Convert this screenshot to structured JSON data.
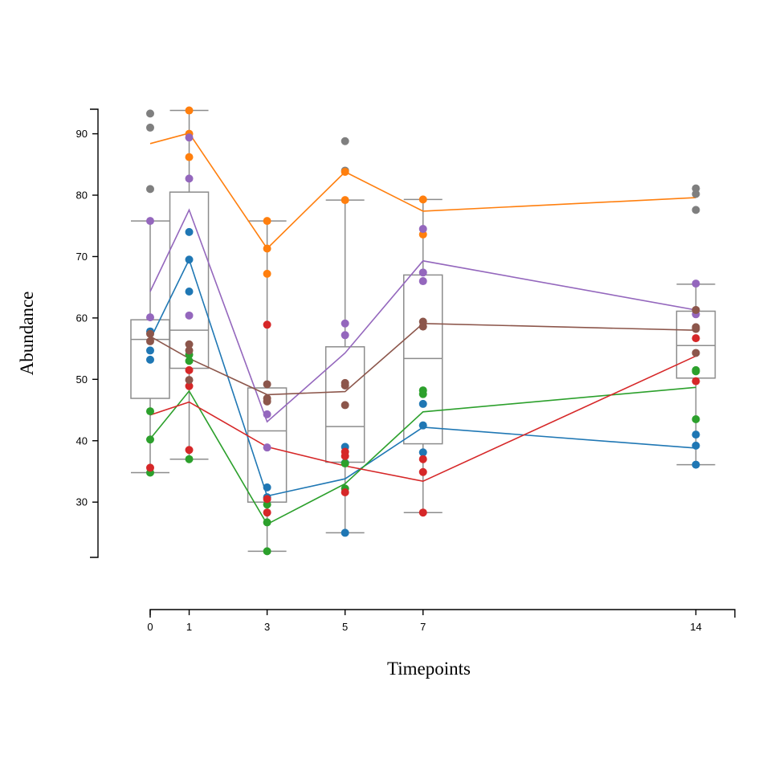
{
  "chart_data": {
    "type": "box",
    "xlabel": "Timepoints",
    "ylabel": "Abundance",
    "x_ticks": [
      0,
      1,
      3,
      5,
      7,
      14
    ],
    "x_range": [
      0,
      15
    ],
    "y_ticks": [
      30,
      40,
      50,
      60,
      70,
      80,
      90
    ],
    "y_range": [
      21,
      94
    ],
    "outlier_color": "#7f7f7f",
    "boxes": [
      {
        "x": 0,
        "whisker_low": 34.8,
        "q1": 46.9,
        "median": 56.5,
        "q3": 59.7,
        "whisker_high": 75.8,
        "outliers": [
          81.0,
          91.0,
          93.3
        ]
      },
      {
        "x": 1,
        "whisker_low": 37.0,
        "q1": 51.8,
        "median": 58.0,
        "q3": 80.5,
        "whisker_high": 93.8,
        "outliers": []
      },
      {
        "x": 3,
        "whisker_low": 22.0,
        "q1": 30.0,
        "median": 41.6,
        "q3": 48.6,
        "whisker_high": 75.8,
        "outliers": []
      },
      {
        "x": 5,
        "whisker_low": 25.0,
        "q1": 36.5,
        "median": 42.3,
        "q3": 55.3,
        "whisker_high": 79.2,
        "outliers": [
          84.0,
          88.8
        ]
      },
      {
        "x": 7,
        "whisker_low": 28.3,
        "q1": 39.5,
        "median": 53.4,
        "q3": 67.0,
        "whisker_high": 79.3,
        "outliers": []
      },
      {
        "x": 14,
        "whisker_low": 36.1,
        "q1": 50.2,
        "median": 55.5,
        "q3": 61.1,
        "whisker_high": 65.5,
        "outliers": [
          77.6,
          80.2,
          81.1
        ]
      }
    ],
    "series": [
      {
        "color": "#1f77b4",
        "line": [
          [
            0,
            56.5
          ],
          [
            1,
            69.5
          ],
          [
            3,
            31.0
          ],
          [
            5,
            33.8
          ],
          [
            7,
            42.2
          ],
          [
            14,
            38.8
          ]
        ],
        "points": [
          [
            0,
            53.2
          ],
          [
            0,
            54.7
          ],
          [
            0,
            57.8
          ],
          [
            1,
            64.3
          ],
          [
            1,
            69.5
          ],
          [
            1,
            74.0
          ],
          [
            3,
            30.8
          ],
          [
            3,
            32.4
          ],
          [
            5,
            25.0
          ],
          [
            5,
            36.4
          ],
          [
            5,
            39.0
          ],
          [
            7,
            38.1
          ],
          [
            7,
            42.5
          ],
          [
            7,
            46.0
          ],
          [
            14,
            36.1
          ],
          [
            14,
            39.2
          ],
          [
            14,
            41.0
          ]
        ]
      },
      {
        "color": "#ff7f0e",
        "line": [
          [
            0,
            88.4
          ],
          [
            1,
            90.1
          ],
          [
            3,
            71.3
          ],
          [
            5,
            83.8
          ],
          [
            7,
            77.4
          ],
          [
            14,
            79.6
          ]
        ],
        "points": [
          [
            1,
            86.2
          ],
          [
            1,
            90.0
          ],
          [
            1,
            93.8
          ],
          [
            3,
            67.2
          ],
          [
            3,
            71.3
          ],
          [
            3,
            75.8
          ],
          [
            5,
            79.2
          ],
          [
            5,
            83.8
          ],
          [
            7,
            73.6
          ],
          [
            7,
            79.3
          ]
        ]
      },
      {
        "color": "#2ca02c",
        "line": [
          [
            0,
            40.3
          ],
          [
            1,
            48.1
          ],
          [
            3,
            26.4
          ],
          [
            5,
            33.0
          ],
          [
            7,
            44.7
          ],
          [
            14,
            48.7
          ]
        ],
        "points": [
          [
            0,
            34.8
          ],
          [
            0,
            40.2
          ],
          [
            0,
            44.8
          ],
          [
            1,
            37.0
          ],
          [
            1,
            53.0
          ],
          [
            1,
            54.0
          ],
          [
            3,
            22.0
          ],
          [
            3,
            26.7
          ],
          [
            3,
            29.6
          ],
          [
            5,
            32.2
          ],
          [
            5,
            36.3
          ],
          [
            7,
            47.6
          ],
          [
            7,
            48.2
          ],
          [
            14,
            43.5
          ],
          [
            14,
            51.3
          ],
          [
            14,
            51.5
          ]
        ]
      },
      {
        "color": "#d62728",
        "line": [
          [
            0,
            44.2
          ],
          [
            1,
            46.3
          ],
          [
            3,
            39.0
          ],
          [
            5,
            35.9
          ],
          [
            7,
            33.4
          ],
          [
            14,
            53.8
          ]
        ],
        "points": [
          [
            0,
            35.6
          ],
          [
            1,
            38.5
          ],
          [
            1,
            48.9
          ],
          [
            1,
            51.5
          ],
          [
            3,
            28.3
          ],
          [
            3,
            30.5
          ],
          [
            3,
            58.9
          ],
          [
            5,
            31.6
          ],
          [
            5,
            37.5
          ],
          [
            5,
            38.2
          ],
          [
            7,
            28.3
          ],
          [
            7,
            34.9
          ],
          [
            7,
            37.0
          ],
          [
            14,
            49.7
          ],
          [
            14,
            56.7
          ]
        ]
      },
      {
        "color": "#9467bd",
        "line": [
          [
            0,
            64.3
          ],
          [
            1,
            77.6
          ],
          [
            3,
            43.1
          ],
          [
            5,
            54.3
          ],
          [
            7,
            69.3
          ],
          [
            14,
            61.3
          ]
        ],
        "points": [
          [
            0,
            60.1
          ],
          [
            0,
            75.8
          ],
          [
            1,
            60.4
          ],
          [
            1,
            82.7
          ],
          [
            1,
            89.4
          ],
          [
            3,
            38.9
          ],
          [
            3,
            44.3
          ],
          [
            5,
            57.2
          ],
          [
            5,
            59.1
          ],
          [
            7,
            66.0
          ],
          [
            7,
            67.4
          ],
          [
            7,
            74.5
          ],
          [
            14,
            60.6
          ],
          [
            14,
            65.6
          ]
        ]
      },
      {
        "color": "#8c564b",
        "line": [
          [
            0,
            57.0
          ],
          [
            1,
            53.4
          ],
          [
            3,
            47.5
          ],
          [
            5,
            48.0
          ],
          [
            7,
            59.1
          ],
          [
            14,
            58.0
          ]
        ],
        "points": [
          [
            0,
            56.2
          ],
          [
            0,
            57.4
          ],
          [
            1,
            49.9
          ],
          [
            1,
            54.7
          ],
          [
            1,
            55.7
          ],
          [
            3,
            46.4
          ],
          [
            3,
            46.9
          ],
          [
            3,
            49.2
          ],
          [
            5,
            45.8
          ],
          [
            5,
            49.0
          ],
          [
            5,
            49.4
          ],
          [
            7,
            58.6
          ],
          [
            7,
            59.4
          ],
          [
            14,
            54.3
          ],
          [
            14,
            58.2
          ],
          [
            14,
            58.5
          ],
          [
            14,
            61.3
          ]
        ]
      }
    ]
  }
}
